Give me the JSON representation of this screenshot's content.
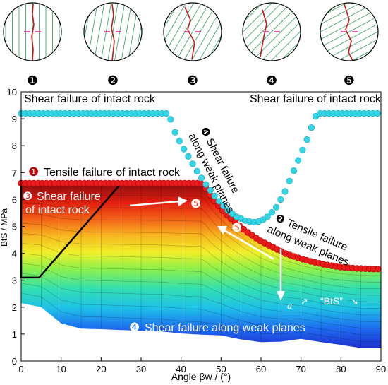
{
  "failure_modes": [
    {
      "num": "1",
      "symbol": "❶",
      "label": "Tensile failure of intact rock"
    },
    {
      "num": "2",
      "symbol": "❷",
      "label_lines": [
        "Tensile failure",
        "along weak planes"
      ]
    },
    {
      "num": "3",
      "symbol": "❸",
      "label_lines": [
        "Shear failure",
        "of intact rock"
      ]
    },
    {
      "num": "4",
      "symbol": "❹",
      "label": "Shear failure along weak planes"
    },
    {
      "num": "4b",
      "symbol": "❹",
      "label_lines": [
        "Shear failure",
        "along weak planes"
      ]
    },
    {
      "num": "5",
      "symbol": "❺"
    }
  ],
  "inset_numbers": [
    "❶",
    "❷",
    "❸",
    "❹",
    "❺"
  ],
  "annotations": {
    "shear_intact_left": "Shear failure of intact rock",
    "shear_intact_right": "Shear failure of intact rock",
    "alpha": "a",
    "bts_legend": "“BtS”"
  },
  "chart_data": {
    "type": "area",
    "xlabel": "Angle  βw / (°)",
    "ylabel": "BtS / MPa",
    "xlim": [
      0,
      90
    ],
    "ylim": [
      0,
      10
    ],
    "xticks": [
      0,
      10,
      20,
      30,
      40,
      50,
      60,
      70,
      80,
      90
    ],
    "yticks": [
      0,
      1,
      2,
      3,
      4,
      5,
      6,
      7,
      8,
      9,
      10
    ],
    "grid": false,
    "series": [
      {
        "name": "Shear failure of intact rock",
        "color": "#33d6e6",
        "x": [
          0,
          37,
          38,
          40,
          42,
          44,
          46,
          48,
          50,
          52,
          54,
          56,
          58,
          60,
          62,
          64,
          66,
          68,
          70,
          72,
          73,
          74,
          90
        ],
        "y": [
          9.2,
          9.2,
          8.65,
          8.05,
          7.55,
          7.05,
          6.6,
          6.2,
          5.85,
          5.55,
          5.35,
          5.22,
          5.15,
          5.2,
          5.4,
          5.75,
          6.3,
          7.0,
          7.7,
          8.4,
          8.85,
          9.2,
          9.2
        ]
      },
      {
        "name": "Tensile failure along weak planes",
        "color": "#e81a1a",
        "x": [
          0,
          45,
          46,
          48,
          50,
          52,
          54,
          56,
          58,
          60,
          62,
          64,
          66,
          68,
          70,
          72,
          74,
          76,
          78,
          80,
          82,
          84,
          86,
          88,
          90
        ],
        "y": [
          6.6,
          6.6,
          6.45,
          6.0,
          5.65,
          5.35,
          5.1,
          4.85,
          4.65,
          4.45,
          4.3,
          4.15,
          4.0,
          3.9,
          3.8,
          3.72,
          3.65,
          3.58,
          3.53,
          3.49,
          3.46,
          3.44,
          3.43,
          3.42,
          3.42
        ]
      },
      {
        "name": "Shear failure along weak planes (bottom)",
        "color": "#1f3fd0",
        "x": [
          0,
          5,
          10,
          15,
          20,
          25,
          30,
          35,
          40,
          45,
          50,
          55,
          60,
          65,
          70,
          75,
          80,
          85,
          90
        ],
        "y": [
          2.15,
          2.0,
          1.4,
          1.2,
          1.18,
          1.15,
          1.12,
          1.1,
          1.02,
          0.98,
          0.95,
          0.8,
          0.7,
          0.72,
          0.82,
          0.7,
          0.6,
          0.48,
          0.48
        ]
      }
    ]
  }
}
